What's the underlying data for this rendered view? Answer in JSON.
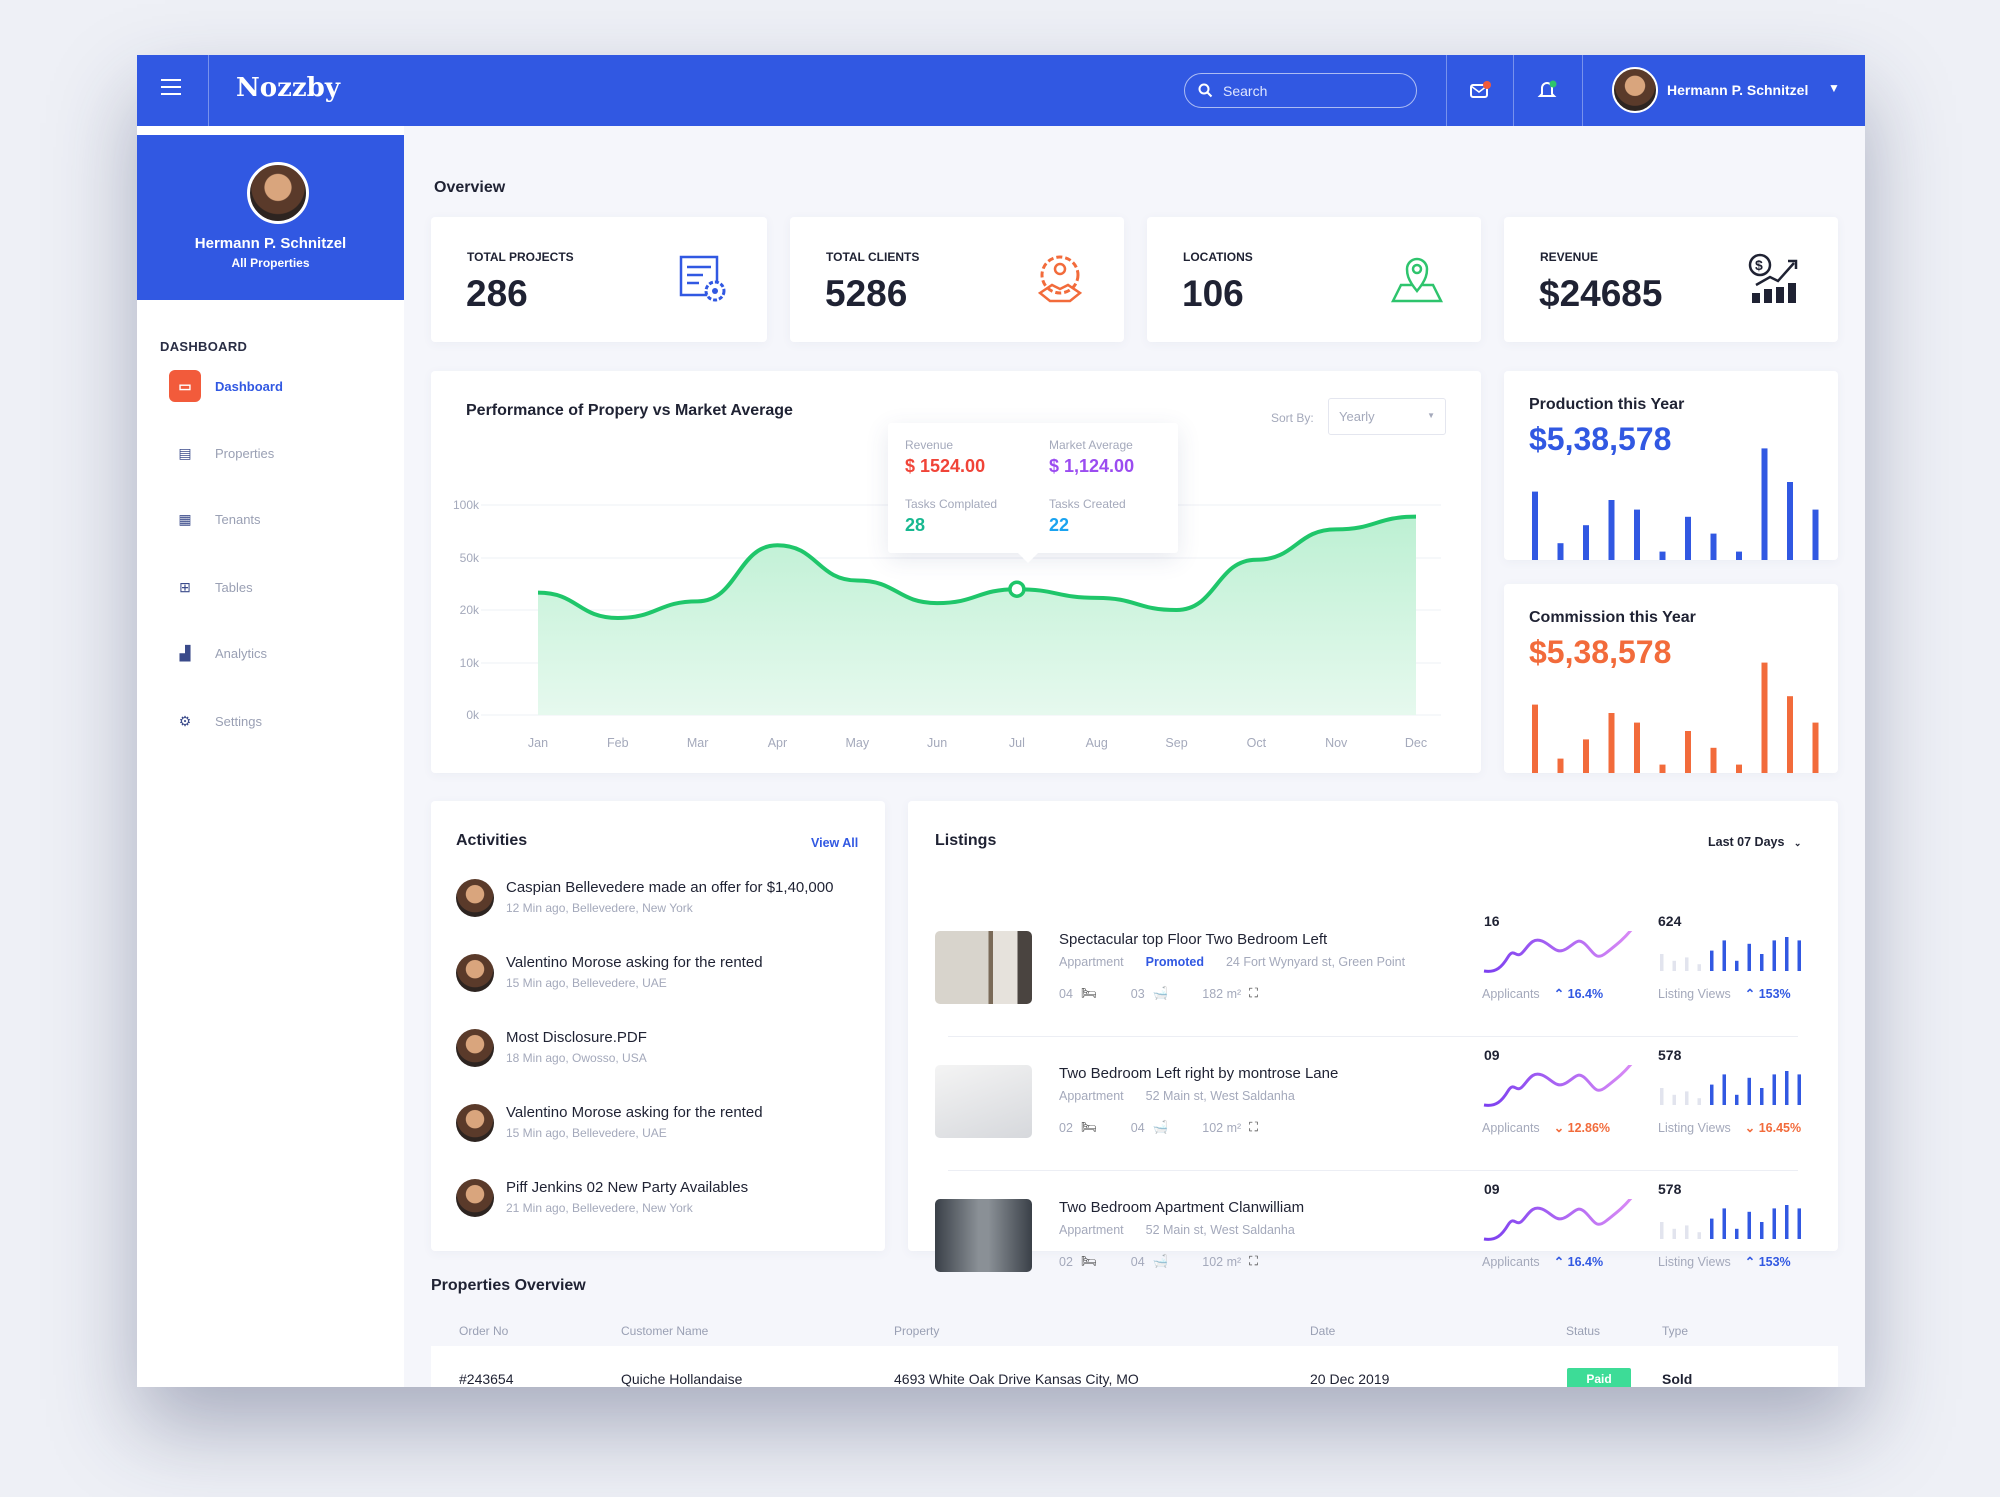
{
  "header": {
    "logo": "Nozzby",
    "search_placeholder": "Search",
    "user_name": "Hermann P. Schnitzel"
  },
  "profile": {
    "name": "Hermann P. Schnitzel",
    "subtitle": "All Properties"
  },
  "sidebar": {
    "section": "DASHBOARD",
    "items": [
      {
        "label": "Dashboard",
        "icon": "monitor-icon",
        "active": true
      },
      {
        "label": "Properties",
        "icon": "document-icon"
      },
      {
        "label": "Tenants",
        "icon": "image-icon"
      },
      {
        "label": "Tables",
        "icon": "table-icon"
      },
      {
        "label": "Analytics",
        "icon": "bar-chart-icon"
      },
      {
        "label": "Settings",
        "icon": "gear-icon"
      }
    ]
  },
  "overview": {
    "title": "Overview",
    "stats": [
      {
        "label": "TOTAL PROJECTS",
        "value": "286",
        "icon": "blueprint-gear-icon",
        "color": "#3158e2"
      },
      {
        "label": "TOTAL CLIENTS",
        "value": "5286",
        "icon": "handshake-icon",
        "color": "#f26b3b"
      },
      {
        "label": "LOCATIONS",
        "value": "106",
        "icon": "map-pin-icon",
        "color": "#2ec46d"
      },
      {
        "label": "REVENUE",
        "value": "$24685",
        "icon": "money-growth-icon",
        "color": "#1f2233"
      }
    ]
  },
  "performance": {
    "title": "Performance of Propery vs Market Average",
    "sort_label": "Sort By:",
    "sort_value": "Yearly",
    "tooltip": {
      "revenue_label": "Revenue",
      "revenue": "$ 1524.00",
      "market_label": "Market Average",
      "market": "$ 1,124.00",
      "completed_label": "Tasks Complated",
      "completed": "28",
      "created_label": "Tasks Created",
      "created": "22"
    }
  },
  "chart_data": [
    {
      "type": "area",
      "categories": [
        "Jan",
        "Feb",
        "Mar",
        "Apr",
        "May",
        "Jun",
        "Jul",
        "Aug",
        "Sep",
        "Oct",
        "Nov",
        "Dec"
      ],
      "values": [
        30000,
        18500,
        25000,
        62000,
        37000,
        24000,
        32000,
        27000,
        20000,
        49000,
        77000,
        89000
      ],
      "y_ticks": [
        "100k",
        "50k",
        "20k",
        "10k",
        "0k"
      ],
      "y_tick_values": [
        100000,
        50000,
        20000,
        10000,
        0
      ],
      "highlight": "Jul",
      "color": "#1fc66a",
      "grid": true
    },
    {
      "type": "bar",
      "title": "Production this Year",
      "total": "$5,38,578",
      "color": "#3158e2",
      "values": [
        57,
        14,
        29,
        50,
        42,
        7,
        36,
        22,
        7,
        93,
        65,
        42
      ]
    },
    {
      "type": "bar",
      "title": "Commission this Year",
      "total": "$5,38,578",
      "color": "#f26b3b",
      "values": [
        57,
        12,
        28,
        50,
        42,
        7,
        35,
        21,
        7,
        92,
        64,
        42
      ]
    }
  ],
  "activities": {
    "title": "Activities",
    "view_all": "View All",
    "items": [
      {
        "text": "Caspian Bellevedere made an offer for $1,40,000",
        "meta": "12 Min ago, Bellevedere, New York"
      },
      {
        "text": "Valentino Morose asking for the rented",
        "meta": "15 Min ago, Bellevedere, UAE"
      },
      {
        "text": "Most Disclosure.PDF",
        "meta": "18 Min ago, Owosso, USA"
      },
      {
        "text": "Valentino Morose asking for the rented",
        "meta": "15 Min ago, Bellevedere, UAE"
      },
      {
        "text": "Piff Jenkins 02 New Party Availables",
        "meta": "21 Min ago, Bellevedere, New York"
      }
    ]
  },
  "listings": {
    "title": "Listings",
    "range": "Last 07 Days",
    "items": [
      {
        "title": "Spectacular top Floor Two Bedroom Left",
        "type": "Appartment",
        "badge": "Promoted",
        "address": "24 Fort Wynyard st, Green Point",
        "beds": "04",
        "baths": "03",
        "area": "182 m²",
        "applicants": "16",
        "applicants_label": "Applicants",
        "applicants_change": "16.4%",
        "applicants_trend": "up",
        "views": "624",
        "views_label": "Listing Views",
        "views_change": "153%",
        "views_trend": "up"
      },
      {
        "title": "Two Bedroom Left right by montrose Lane",
        "type": "Appartment",
        "address": "52 Main st, West Saldanha",
        "beds": "02",
        "baths": "04",
        "area": "102 m²",
        "applicants": "09",
        "applicants_label": "Applicants",
        "applicants_change": "12.86%",
        "applicants_trend": "down",
        "views": "578",
        "views_label": "Listing Views",
        "views_change": "16.45%",
        "views_trend": "down"
      },
      {
        "title": "Two Bedroom Apartment Clanwilliam",
        "type": "Appartment",
        "address": "52 Main st, West Saldanha",
        "beds": "02",
        "baths": "04",
        "area": "102 m²",
        "applicants": "09",
        "applicants_label": "Applicants",
        "applicants_change": "16.4%",
        "applicants_trend": "up",
        "views": "578",
        "views_label": "Listing Views",
        "views_change": "153%",
        "views_trend": "up"
      }
    ],
    "mini_bars": [
      5,
      3,
      4,
      2,
      6,
      9,
      3,
      8,
      5,
      9,
      10,
      9
    ]
  },
  "properties": {
    "title": "Properties Overview",
    "columns": [
      "Order No",
      "Customer Name",
      "Property",
      "Date",
      "Status",
      "Type"
    ],
    "rows": [
      {
        "order": "#243654",
        "customer": "Quiche Hollandaise",
        "property": "4693 White Oak Drive Kansas City, MO",
        "date": "20 Dec 2019",
        "status": "Paid",
        "type": "Sold"
      }
    ]
  }
}
